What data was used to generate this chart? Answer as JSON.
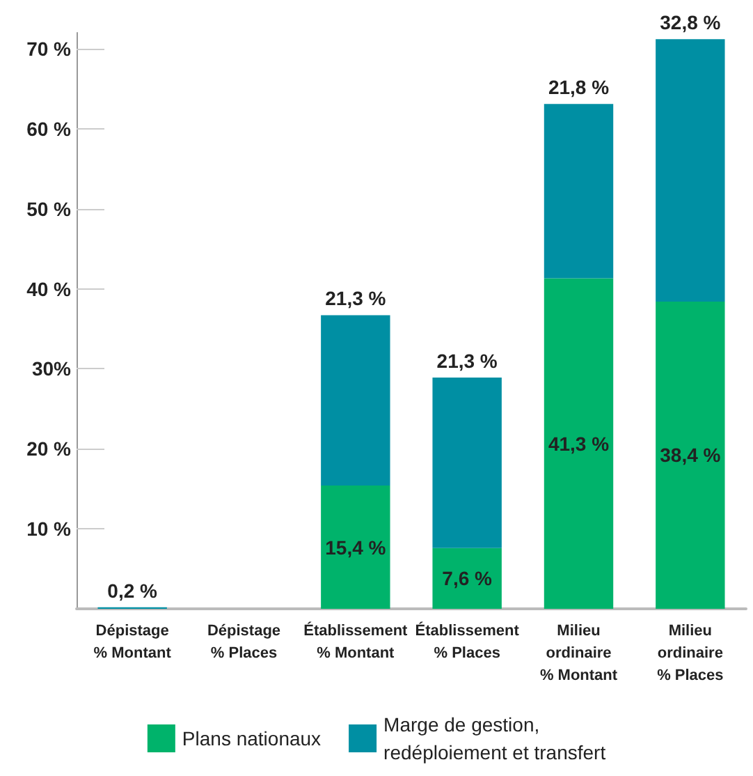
{
  "chart_data": {
    "type": "bar",
    "stacked": true,
    "categories": [
      "Dépistage\n% Montant",
      "Dépistage\n% Places",
      "Établissement\n% Montant",
      "Établissement\n% Places",
      "Milieu\nordinaire\n% Montant",
      "Milieu\nordinaire\n% Places"
    ],
    "series": [
      {
        "name": "Plans nationaux",
        "color": "#00b36b",
        "values": [
          0,
          null,
          15.4,
          7.6,
          41.3,
          38.4
        ],
        "value_labels": [
          null,
          null,
          "15,4 %",
          "7,6 %",
          "41,3 %",
          "38,4 %"
        ]
      },
      {
        "name": "Marge de gestion,\nredéploiement et transfert",
        "color": "#008fa3",
        "values": [
          0.2,
          null,
          21.3,
          21.3,
          21.8,
          32.8
        ],
        "value_labels": [
          "0,2 %",
          null,
          "21,3 %",
          "21,3 %",
          "21,8 %",
          "32,8 %"
        ]
      }
    ],
    "ylim": [
      0,
      72
    ],
    "yticks": [
      {
        "value": 10,
        "label": "10 %"
      },
      {
        "value": 20,
        "label": "20 %"
      },
      {
        "value": 30,
        "label": "30%"
      },
      {
        "value": 40,
        "label": "40 %"
      },
      {
        "value": 50,
        "label": "50 %"
      },
      {
        "value": 60,
        "label": "60 %"
      },
      {
        "value": 70,
        "label": "70 %"
      }
    ],
    "grid": false,
    "legend": "bottom"
  }
}
